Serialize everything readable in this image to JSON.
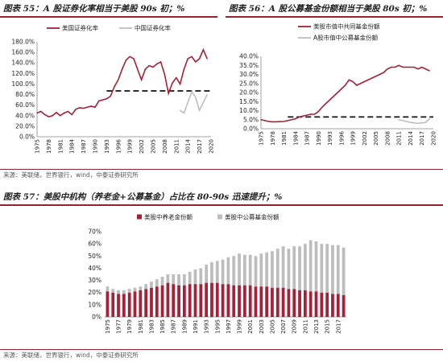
{
  "charts": [
    {
      "header": "图表 55：A 股证券化率相当于美股 90s 初；%",
      "source": "来源：美联储，世界银行，wind，中泰证券研究所"
    },
    {
      "header": "图表 56：A 股公募基金份额相当于美股 80s 初；%",
      "source": ""
    },
    {
      "header": "图表 57：美股中机构（养老金+公募基金）占比在 80-90s 迅速提升；%",
      "source": "来源：美联储，世界银行，wind，中泰证券研究所"
    }
  ],
  "colors": {
    "red": "#a81f36",
    "gray": "#bdbdbd",
    "dash": "#111111",
    "accent": "#9a1f2f"
  },
  "chart_data": [
    {
      "type": "line",
      "years": [
        1975,
        1976,
        1977,
        1978,
        1979,
        1980,
        1981,
        1982,
        1983,
        1984,
        1985,
        1986,
        1987,
        1988,
        1989,
        1990,
        1991,
        1992,
        1993,
        1994,
        1995,
        1996,
        1997,
        1998,
        1999,
        2000,
        2001,
        2002,
        2003,
        2004,
        2005,
        2006,
        2007,
        2008,
        2009,
        2010,
        2011,
        2012,
        2013,
        2014,
        2015,
        2016,
        2017,
        2018,
        2019,
        2020
      ],
      "x_ticks": [
        1975,
        1978,
        1981,
        1984,
        1987,
        1990,
        1993,
        1996,
        1999,
        2002,
        2005,
        2008,
        2011,
        2014,
        2017,
        2020
      ],
      "ylim": [
        0,
        180
      ],
      "y_ticks": [
        0,
        20,
        40,
        60,
        80,
        100,
        120,
        140,
        160,
        180
      ],
      "y_tick_labels": [
        "0.0%",
        "20.0%",
        "40.0%",
        "60.0%",
        "80.0%",
        "100.0%",
        "120.0%",
        "140.0%",
        "160.0%",
        "180.0%"
      ],
      "reference_line": {
        "y": 87,
        "x_from": 1993,
        "x_to": 2020,
        "style": "dashed"
      },
      "series": [
        {
          "name": "美国证券化率",
          "color": "#a81f36",
          "values": [
            45,
            48,
            42,
            38,
            40,
            46,
            40,
            45,
            48,
            42,
            52,
            55,
            54,
            56,
            58,
            56,
            68,
            70,
            72,
            77,
            95,
            108,
            128,
            145,
            152,
            148,
            128,
            108,
            128,
            135,
            132,
            138,
            142,
            118,
            82,
            102,
            112,
            100,
            128,
            148,
            152,
            142,
            148,
            165,
            148,
            null
          ]
        },
        {
          "name": "中国证券化率",
          "color": "#bdbdbd",
          "values": [
            null,
            null,
            null,
            null,
            null,
            null,
            null,
            null,
            null,
            null,
            null,
            null,
            null,
            null,
            null,
            null,
            null,
            null,
            null,
            null,
            null,
            null,
            null,
            null,
            null,
            null,
            null,
            null,
            null,
            null,
            null,
            null,
            null,
            null,
            null,
            null,
            null,
            50,
            45,
            65,
            85,
            75,
            50,
            65,
            80,
            null
          ]
        }
      ]
    },
    {
      "type": "line",
      "years": [
        1975,
        1976,
        1977,
        1978,
        1979,
        1980,
        1981,
        1982,
        1983,
        1984,
        1985,
        1986,
        1987,
        1988,
        1989,
        1990,
        1991,
        1992,
        1993,
        1994,
        1995,
        1996,
        1997,
        1998,
        1999,
        2000,
        2001,
        2002,
        2003,
        2004,
        2005,
        2006,
        2007,
        2008,
        2009,
        2010,
        2011,
        2012,
        2013,
        2014,
        2015,
        2016,
        2017,
        2018,
        2019,
        2020
      ],
      "x_ticks": [
        1975,
        1978,
        1981,
        1984,
        1987,
        1990,
        1993,
        1996,
        1999,
        2002,
        2005,
        2008,
        2011,
        2014,
        2017,
        2020
      ],
      "ylim": [
        0,
        40
      ],
      "y_ticks": [
        0,
        5,
        10,
        15,
        20,
        25,
        30,
        35,
        40
      ],
      "y_tick_labels": [
        "0.0%",
        "5.0%",
        "10.0%",
        "15.0%",
        "20.0%",
        "25.0%",
        "30.0%",
        "35.0%",
        "40.0%"
      ],
      "reference_line": {
        "y": 6.5,
        "x_from": 1982,
        "x_to": 2020,
        "style": "dashed"
      },
      "series": [
        {
          "name": "美股市值中共同基金份额",
          "color": "#a81f36",
          "values": [
            5,
            4.5,
            4,
            3.8,
            3.8,
            3.9,
            4,
            4.5,
            5,
            5.5,
            6.5,
            7,
            7.5,
            8,
            8,
            9.5,
            12,
            14,
            16,
            18,
            20,
            22,
            24,
            27,
            26,
            24,
            25,
            26,
            27,
            28,
            29,
            30,
            31,
            33,
            34,
            34,
            35,
            34,
            34,
            34,
            34,
            33,
            34,
            33,
            32,
            null
          ]
        },
        {
          "name": "A股市值中公募基金份额",
          "color": "#bdbdbd",
          "values": [
            null,
            null,
            null,
            null,
            null,
            null,
            null,
            null,
            null,
            null,
            null,
            null,
            null,
            null,
            null,
            null,
            null,
            null,
            null,
            null,
            null,
            null,
            null,
            null,
            null,
            null,
            null,
            null,
            null,
            null,
            null,
            null,
            null,
            null,
            null,
            null,
            5,
            4.5,
            4,
            3.5,
            3.2,
            3,
            3.2,
            3.5,
            5.5,
            null
          ]
        }
      ]
    },
    {
      "type": "bar",
      "stacked": true,
      "years": [
        1975,
        1976,
        1977,
        1978,
        1979,
        1980,
        1981,
        1982,
        1983,
        1984,
        1985,
        1986,
        1987,
        1988,
        1989,
        1990,
        1991,
        1992,
        1993,
        1994,
        1995,
        1996,
        1997,
        1998,
        1999,
        2000,
        2001,
        2002,
        2003,
        2004,
        2005,
        2006,
        2007,
        2008,
        2009,
        2010,
        2011,
        2012,
        2013,
        2014,
        2015,
        2016,
        2017,
        2018
      ],
      "x_ticks": [
        1975,
        1977,
        1979,
        1981,
        1983,
        1985,
        1987,
        1989,
        1991,
        1993,
        1995,
        1997,
        1999,
        2001,
        2003,
        2005,
        2007,
        2009,
        2011,
        2013,
        2015,
        2017
      ],
      "ylim": [
        0,
        70
      ],
      "y_ticks": [
        0,
        10,
        20,
        30,
        40,
        50,
        60,
        70
      ],
      "y_tick_labels": [
        "0%",
        "10%",
        "20%",
        "30%",
        "40%",
        "50%",
        "60%",
        "70%"
      ],
      "series": [
        {
          "name": "美股中养老金份额",
          "color": "#a81f36",
          "values": [
            21,
            20,
            19,
            19,
            20,
            21,
            22,
            23,
            24,
            25,
            26,
            28,
            27,
            26,
            26,
            27,
            27,
            27,
            28,
            28,
            28,
            27,
            27,
            26,
            26,
            26,
            26,
            25,
            25,
            25,
            24,
            24,
            24,
            23,
            23,
            22,
            22,
            21,
            21,
            20,
            20,
            19,
            19,
            18
          ]
        },
        {
          "name": "美股中公募基金份额",
          "color": "#bdbdbd",
          "values": [
            4,
            3,
            3,
            3,
            3,
            3,
            3,
            4,
            5,
            6,
            7,
            7,
            8,
            9,
            9,
            10,
            12,
            13,
            15,
            17,
            18,
            20,
            22,
            24,
            26,
            25,
            25,
            25,
            27,
            28,
            30,
            32,
            34,
            33,
            35,
            36,
            38,
            42,
            41,
            40,
            40,
            40,
            40,
            39
          ]
        }
      ]
    }
  ]
}
